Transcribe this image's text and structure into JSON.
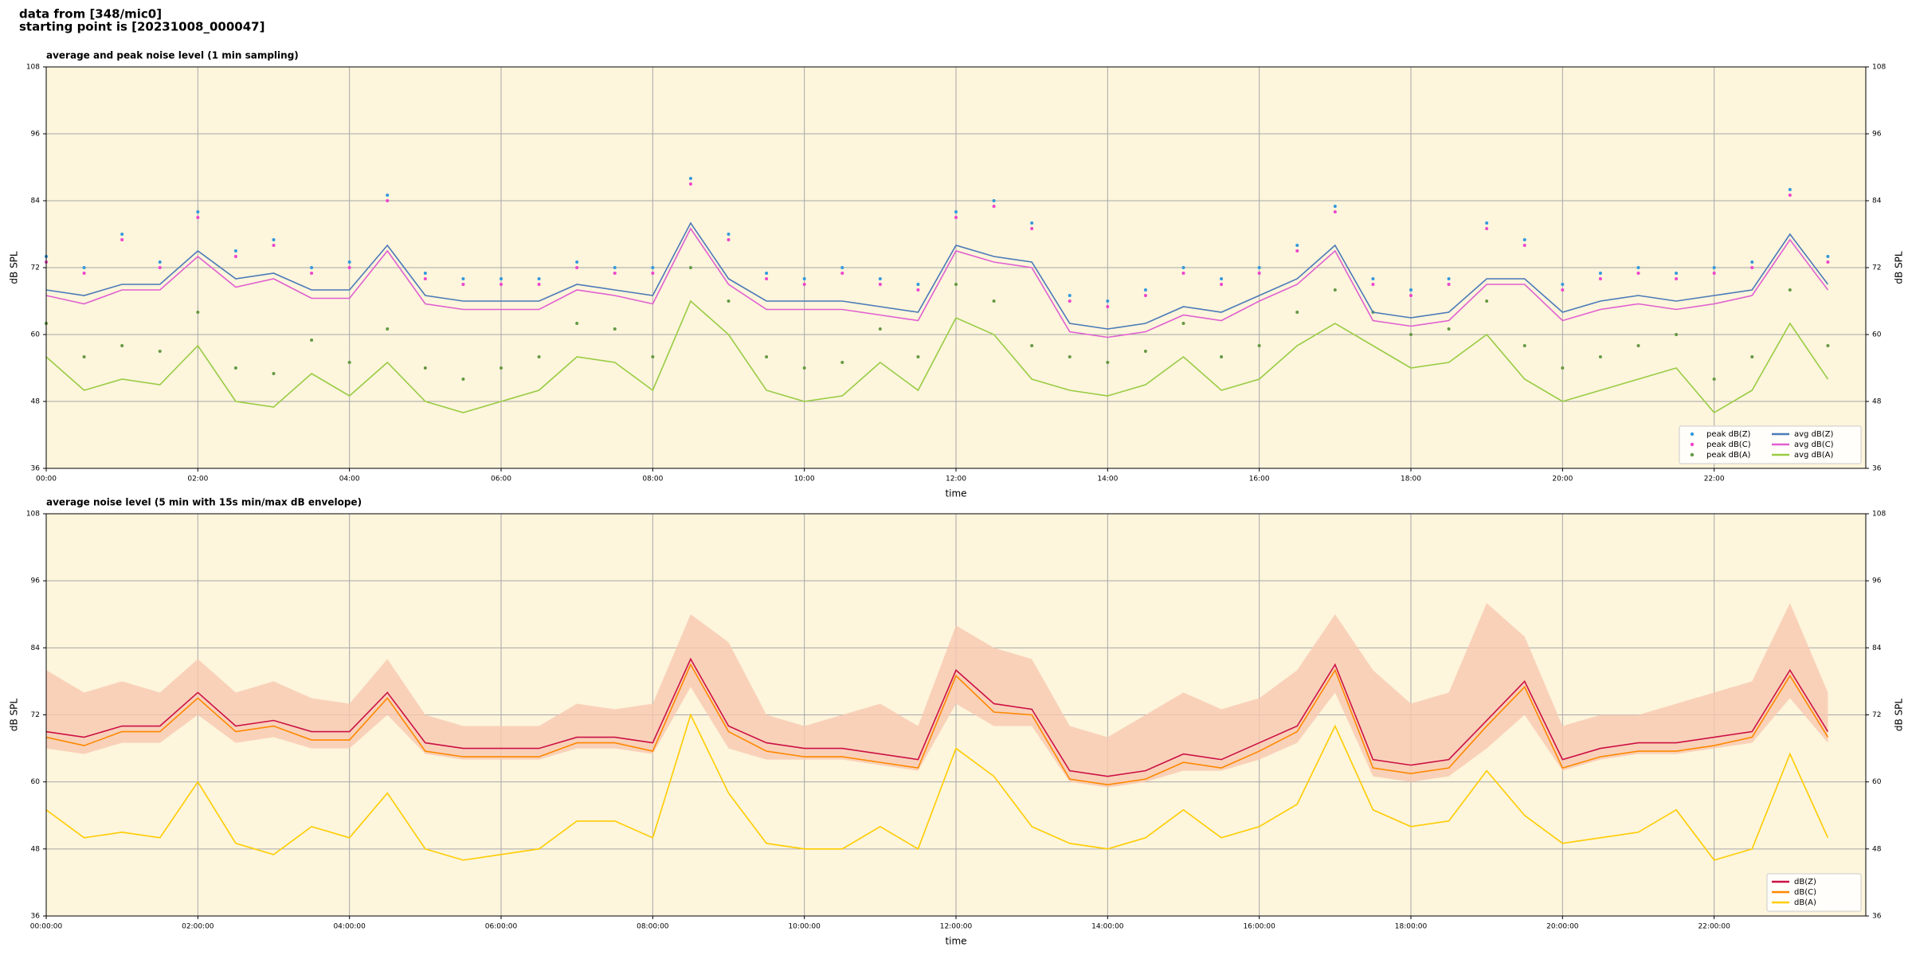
{
  "page_title": [
    "data from [348/mic0]",
    "starting point is [20231008_000047]"
  ],
  "chart_data": [
    {
      "type": "line",
      "title": "average and peak noise level (1 min sampling)",
      "xlabel": "time",
      "ylabel": "dB SPL",
      "background": "#fdf5dc",
      "grid": true,
      "legend": "lower right",
      "legend_columns": 2,
      "xlim": [
        0,
        24
      ],
      "ylim": [
        36,
        108
      ],
      "yticks": [
        36,
        48,
        60,
        72,
        84,
        96,
        108
      ],
      "xticks": [
        {
          "value": 0,
          "label": "00:00"
        },
        {
          "value": 2,
          "label": "02:00"
        },
        {
          "value": 4,
          "label": "04:00"
        },
        {
          "value": 6,
          "label": "06:00"
        },
        {
          "value": 8,
          "label": "08:00"
        },
        {
          "value": 10,
          "label": "10:00"
        },
        {
          "value": 12,
          "label": "12:00"
        },
        {
          "value": 14,
          "label": "14:00"
        },
        {
          "value": 16,
          "label": "16:00"
        },
        {
          "value": 18,
          "label": "18:00"
        },
        {
          "value": 20,
          "label": "20:00"
        },
        {
          "value": 22,
          "label": "22:00"
        }
      ],
      "x": [
        0,
        0.5,
        1,
        1.5,
        2,
        2.5,
        3,
        3.5,
        4,
        4.5,
        5,
        5.5,
        6,
        6.5,
        7,
        7.5,
        8,
        8.5,
        9,
        9.5,
        10,
        10.5,
        11,
        11.5,
        12,
        12.5,
        13,
        13.5,
        14,
        14.5,
        15,
        15.5,
        16,
        16.5,
        17,
        17.5,
        18,
        18.5,
        19,
        19.5,
        20,
        20.5,
        21,
        21.5,
        22,
        22.5,
        23,
        23.5
      ],
      "series": [
        {
          "name": "peak dB(Z)",
          "type": "scatter",
          "color": "#3399dd",
          "values": [
            74,
            72,
            78,
            73,
            82,
            75,
            77,
            72,
            73,
            85,
            71,
            70,
            70,
            70,
            73,
            72,
            72,
            88,
            78,
            71,
            70,
            72,
            70,
            69,
            82,
            84,
            80,
            67,
            66,
            68,
            72,
            70,
            72,
            76,
            83,
            70,
            68,
            70,
            80,
            77,
            69,
            71,
            72,
            71,
            72,
            73,
            86,
            74
          ]
        },
        {
          "name": "peak dB(C)",
          "type": "scatter",
          "color": "#ee44cc",
          "values": [
            73,
            71,
            77,
            72,
            81,
            74,
            76,
            71,
            72,
            84,
            70,
            69,
            69,
            69,
            72,
            71,
            71,
            87,
            77,
            70,
            69,
            71,
            69,
            68,
            81,
            83,
            79,
            66,
            65,
            67,
            71,
            69,
            71,
            75,
            82,
            69,
            67,
            69,
            79,
            76,
            68,
            70,
            71,
            70,
            71,
            72,
            85,
            73
          ]
        },
        {
          "name": "peak dB(A)",
          "type": "scatter",
          "color": "#669944",
          "values": [
            62,
            56,
            58,
            57,
            64,
            54,
            53,
            59,
            55,
            61,
            54,
            52,
            54,
            56,
            62,
            61,
            56,
            72,
            66,
            56,
            54,
            55,
            61,
            56,
            69,
            66,
            58,
            56,
            55,
            57,
            62,
            56,
            58,
            64,
            68,
            64,
            60,
            61,
            66,
            58,
            54,
            56,
            58,
            60,
            52,
            56,
            68,
            58
          ]
        },
        {
          "name": "avg dB(Z)",
          "type": "line",
          "color": "#4a7ab8",
          "values": [
            68,
            67,
            69,
            69,
            75,
            70,
            71,
            68,
            68,
            76,
            67,
            66,
            66,
            66,
            69,
            68,
            67,
            80,
            70,
            66,
            66,
            66,
            65,
            64,
            76,
            74,
            73,
            62,
            61,
            62,
            65,
            64,
            67,
            70,
            76,
            64,
            63,
            64,
            70,
            70,
            64,
            66,
            67,
            66,
            67,
            68,
            78,
            69
          ]
        },
        {
          "name": "avg dB(C)",
          "type": "line",
          "color": "#e060d0",
          "values": [
            67,
            65.5,
            68,
            68,
            74,
            68.5,
            70,
            66.5,
            66.5,
            75,
            65.5,
            64.5,
            64.5,
            64.5,
            68,
            67,
            65.5,
            79,
            69,
            64.5,
            64.5,
            64.5,
            63.5,
            62.5,
            75,
            73,
            72,
            60.5,
            59.5,
            60.5,
            63.5,
            62.5,
            66,
            69,
            75,
            62.5,
            61.5,
            62.5,
            69,
            69,
            62.5,
            64.5,
            65.5,
            64.5,
            65.5,
            67,
            77,
            68
          ]
        },
        {
          "name": "avg dB(A)",
          "type": "line",
          "color": "#99cc44",
          "values": [
            56,
            50,
            52,
            51,
            58,
            48,
            47,
            53,
            49,
            55,
            48,
            46,
            48,
            50,
            56,
            55,
            50,
            66,
            60,
            50,
            48,
            49,
            55,
            50,
            63,
            60,
            52,
            50,
            49,
            51,
            56,
            50,
            52,
            58,
            62,
            58,
            54,
            55,
            60,
            52,
            48,
            50,
            52,
            54,
            46,
            50,
            62,
            52
          ]
        }
      ]
    },
    {
      "type": "line",
      "title": "average noise level (5 min with 15s min/max dB envelope)",
      "xlabel": "time",
      "ylabel": "dB SPL",
      "background": "#fdf5dc",
      "grid": true,
      "legend": "lower right",
      "legend_columns": 1,
      "xlim": [
        0,
        24
      ],
      "ylim": [
        36,
        108
      ],
      "yticks": [
        36,
        48,
        60,
        72,
        84,
        96,
        108
      ],
      "xticks": [
        {
          "value": 0,
          "label": "00:00:00"
        },
        {
          "value": 2,
          "label": "02:00:00"
        },
        {
          "value": 4,
          "label": "04:00:00"
        },
        {
          "value": 6,
          "label": "06:00:00"
        },
        {
          "value": 8,
          "label": "08:00:00"
        },
        {
          "value": 10,
          "label": "10:00:00"
        },
        {
          "value": 12,
          "label": "12:00:00"
        },
        {
          "value": 14,
          "label": "14:00:00"
        },
        {
          "value": 16,
          "label": "16:00:00"
        },
        {
          "value": 18,
          "label": "18:00:00"
        },
        {
          "value": 20,
          "label": "20:00:00"
        },
        {
          "value": 22,
          "label": "22:00:00"
        }
      ],
      "x": [
        0,
        0.5,
        1,
        1.5,
        2,
        2.5,
        3,
        3.5,
        4,
        4.5,
        5,
        5.5,
        6,
        6.5,
        7,
        7.5,
        8,
        8.5,
        9,
        9.5,
        10,
        10.5,
        11,
        11.5,
        12,
        12.5,
        13,
        13.5,
        14,
        14.5,
        15,
        15.5,
        16,
        16.5,
        17,
        17.5,
        18,
        18.5,
        19,
        19.5,
        20,
        20.5,
        21,
        21.5,
        22,
        22.5,
        23,
        23.5
      ],
      "envelope": {
        "color": "#f8c8b0",
        "high": [
          80,
          76,
          78,
          76,
          82,
          76,
          78,
          75,
          74,
          82,
          72,
          70,
          70,
          70,
          74,
          73,
          74,
          90,
          85,
          72,
          70,
          72,
          74,
          70,
          88,
          84,
          82,
          70,
          68,
          72,
          76,
          73,
          75,
          80,
          90,
          80,
          74,
          76,
          92,
          86,
          70,
          72,
          72,
          74,
          76,
          78,
          92,
          76
        ],
        "low": [
          66,
          65,
          67,
          67,
          72,
          67,
          68,
          66,
          66,
          72,
          65,
          64,
          64,
          64,
          66,
          66,
          65,
          77,
          66,
          64,
          64,
          64,
          63,
          62,
          74,
          70,
          70,
          60,
          59,
          60,
          62,
          62,
          64,
          67,
          76,
          61,
          60,
          61,
          66,
          72,
          62,
          64,
          65,
          65,
          66,
          67,
          75,
          67
        ]
      },
      "series": [
        {
          "name": "dB(Z)",
          "type": "line",
          "color": "#cc1144",
          "values": [
            69,
            68,
            70,
            70,
            76,
            70,
            71,
            69,
            69,
            76,
            67,
            66,
            66,
            66,
            68,
            68,
            67,
            82,
            70,
            67,
            66,
            66,
            65,
            64,
            80,
            74,
            73,
            62,
            61,
            62,
            65,
            64,
            67,
            70,
            81,
            64,
            63,
            64,
            71,
            78,
            64,
            66,
            67,
            67,
            68,
            69,
            80,
            69
          ]
        },
        {
          "name": "dB(C)",
          "type": "line",
          "color": "#ff8800",
          "values": [
            68,
            66.5,
            69,
            69,
            75,
            69,
            70,
            67.5,
            67.5,
            75,
            65.5,
            64.5,
            64.5,
            64.5,
            67,
            67,
            65.5,
            81,
            69,
            65.5,
            64.5,
            64.5,
            63.5,
            62.5,
            79,
            72.5,
            72,
            60.5,
            59.5,
            60.5,
            63.5,
            62.5,
            65.5,
            69,
            80,
            62.5,
            61.5,
            62.5,
            70,
            77,
            62.5,
            64.5,
            65.5,
            65.5,
            66.5,
            68,
            79,
            68
          ]
        },
        {
          "name": "dB(A)",
          "type": "line",
          "color": "#ffcc00",
          "values": [
            55,
            50,
            51,
            50,
            60,
            49,
            47,
            52,
            50,
            58,
            48,
            46,
            47,
            48,
            53,
            53,
            50,
            72,
            58,
            49,
            48,
            48,
            52,
            48,
            66,
            61,
            52,
            49,
            48,
            50,
            55,
            50,
            52,
            56,
            70,
            55,
            52,
            53,
            62,
            54,
            49,
            50,
            51,
            55,
            46,
            48,
            65,
            50
          ]
        }
      ]
    }
  ]
}
